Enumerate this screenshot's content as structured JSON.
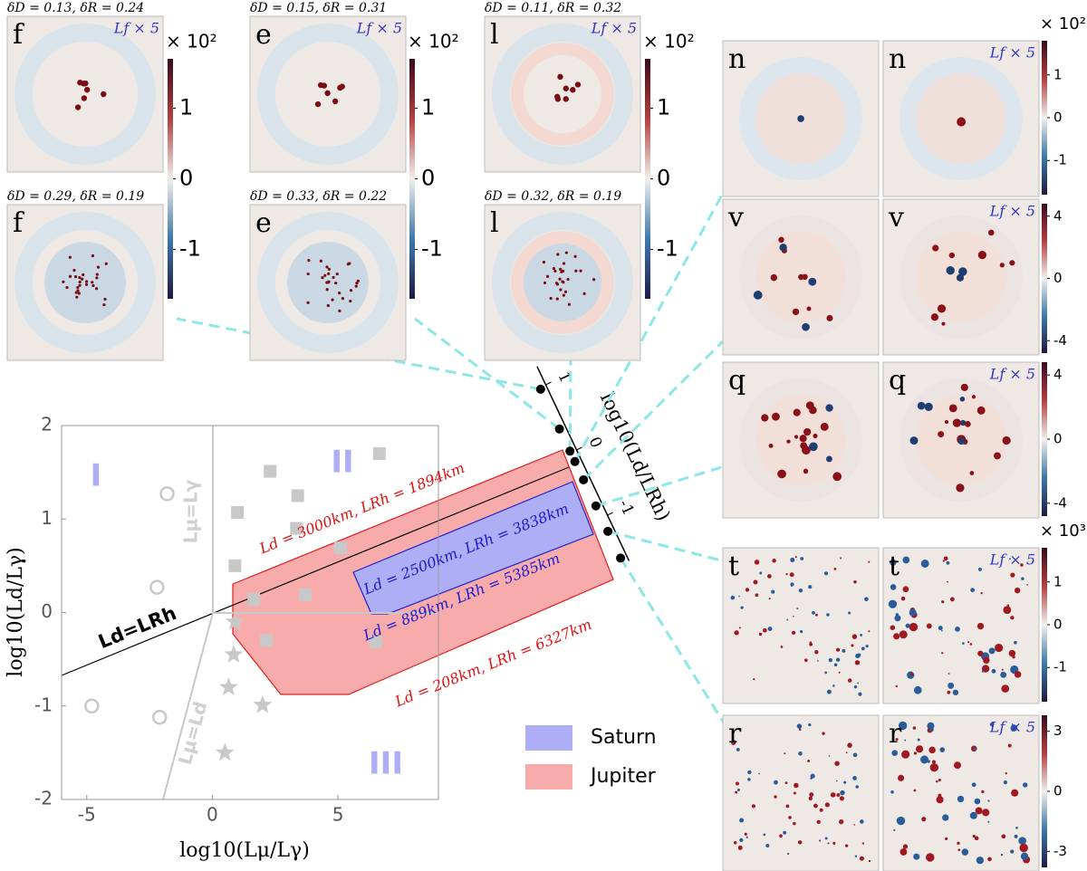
{
  "chart_data": {
    "type": "scatter",
    "xlabel": "log10(Lμ/Lγ)",
    "ylabel": "log10(Ld/Lγ)",
    "xlim": [
      -6,
      9
    ],
    "ylim": [
      -2,
      2
    ],
    "xticks": [
      -5,
      0,
      5
    ],
    "yticks": [
      -2,
      -1,
      0,
      1,
      2
    ],
    "series": [
      {
        "marker": "circle",
        "color": "#c8c8c8",
        "x": [
          -1.8,
          -2.2,
          -4.8,
          -2.1
        ],
        "y": [
          1.27,
          0.27,
          -1.0,
          -1.12
        ]
      },
      {
        "marker": "square",
        "color": "#c8c8c8",
        "x": [
          6.65,
          2.3,
          3.4,
          1.0,
          3.35,
          0.9,
          5.1,
          1.65,
          3.7,
          2.15,
          6.5
        ],
        "y": [
          1.7,
          1.51,
          1.25,
          1.07,
          0.9,
          0.5,
          0.69,
          0.14,
          0.19,
          -0.3,
          -0.32
        ]
      },
      {
        "marker": "star",
        "color": "#c8c8c8",
        "x": [
          0.9,
          0.85,
          0.65,
          2.0,
          0.5
        ],
        "y": [
          -0.1,
          -0.45,
          -0.8,
          -0.99,
          -1.5
        ]
      }
    ],
    "annotations": {
      "regimes": [
        "I",
        "II",
        "III"
      ],
      "lines": [
        "Ld=LRh",
        "Lμ=Lγ",
        "Lμ=Ld"
      ],
      "bounds": [
        "Ld = 3000km, LRh = 1894km",
        "Ld = 2500km, LRh = 3838km",
        "Ld = 889km, LRh = 5385km",
        "Ld = 208km, LRh = 6327km"
      ]
    },
    "legend": [
      {
        "name": "Saturn",
        "color": "#aeaef7"
      },
      {
        "name": "Jupiter",
        "color": "#f7abab"
      }
    ]
  },
  "side_axis": {
    "label": "log10(Ld/LRh)",
    "lim": [
      1.28,
      -1.7
    ],
    "ticks": [
      1,
      0,
      -1
    ],
    "values": [
      0.96,
      0.35,
      0.01,
      -0.15,
      -0.43,
      -0.83,
      -1.22,
      -1.63
    ]
  },
  "panels": [
    {
      "label": "f",
      "caption": "δD = 0.13, δR = 0.24",
      "note": "Lf × 5"
    },
    {
      "label": "e",
      "caption": "δD = 0.15, δR = 0.31",
      "note": "Lf × 5"
    },
    {
      "label": "l",
      "caption": "δD = 0.11, δR = 0.32",
      "note": "Lf × 5"
    },
    {
      "label": "f",
      "caption": "δD = 0.29, δR = 0.19"
    },
    {
      "label": "e",
      "caption": "δD = 0.33, δR = 0.22"
    },
    {
      "label": "l",
      "caption": "δD = 0.32, δR = 0.19"
    },
    {
      "label": "n"
    },
    {
      "label": "n",
      "note": "Lf × 5"
    },
    {
      "label": "v"
    },
    {
      "label": "v",
      "note": "Lf × 5"
    },
    {
      "label": "q"
    },
    {
      "label": "q",
      "note": "Lf × 5"
    },
    {
      "label": "t"
    },
    {
      "label": "t",
      "note": "Lf × 5"
    },
    {
      "label": "r"
    },
    {
      "label": "r",
      "note": "Lf × 5"
    }
  ],
  "colorbars": [
    {
      "multiplier": "× 10²",
      "lim": [
        -1.7,
        1.7
      ],
      "ticks": [
        -1,
        0,
        1
      ]
    },
    {
      "multiplier": "× 10²",
      "lim": [
        -1.7,
        1.7
      ],
      "ticks": [
        -1,
        0,
        1
      ]
    },
    {
      "multiplier": "× 10²",
      "lim": [
        -1.7,
        1.7
      ],
      "ticks": [
        -1,
        0,
        1
      ]
    },
    {
      "multiplier": "× 10²",
      "lim": [
        -1.8,
        1.8
      ],
      "ticks": [
        -1,
        0,
        1
      ]
    },
    {
      "lim": [
        -4.8,
        4.8
      ],
      "ticks": [
        -4,
        0,
        4
      ]
    },
    {
      "lim": [
        -4.8,
        4.8
      ],
      "ticks": [
        -4,
        0,
        4
      ]
    },
    {
      "multiplier": "× 10³",
      "lim": [
        -1.8,
        1.8
      ],
      "ticks": [
        -1,
        0,
        1
      ]
    },
    {
      "lim": [
        -3.8,
        3.8
      ],
      "ticks": [
        -3,
        0,
        3
      ]
    }
  ]
}
